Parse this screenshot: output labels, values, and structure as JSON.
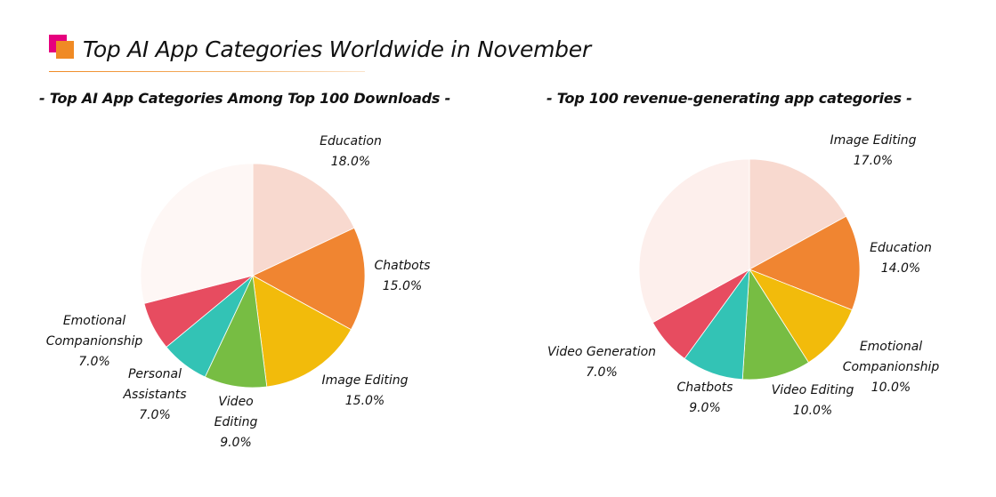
{
  "header": {
    "title": "Top AI App Categories Worldwide in November"
  },
  "colors": {
    "brand_pink": "#e6007e",
    "brand_orange": "#f08a24"
  },
  "chart_data": [
    {
      "type": "pie",
      "title": "- Top AI App Categories Among Top 100 Downloads -",
      "slices": [
        {
          "label": [
            "Education"
          ],
          "value": 18.0,
          "value_label": "18.0%",
          "color": "#f8d9cf"
        },
        {
          "label": [
            "Chatbots"
          ],
          "value": 15.0,
          "value_label": "15.0%",
          "color": "#f08531"
        },
        {
          "label": [
            "Image Editing"
          ],
          "value": 15.0,
          "value_label": "15.0%",
          "color": "#f2bb0b"
        },
        {
          "label": [
            "Video",
            "Editing"
          ],
          "value": 9.0,
          "value_label": "9.0%",
          "color": "#77bd43"
        },
        {
          "label": [
            "Personal",
            "Assistants"
          ],
          "value": 7.0,
          "value_label": "7.0%",
          "color": "#33c3b5"
        },
        {
          "label": [
            "Emotional",
            "Companionship"
          ],
          "value": 7.0,
          "value_label": "7.0%",
          "color": "#e74c60"
        },
        {
          "label": [],
          "value": 29.0,
          "value_label": "",
          "color": "#fef7f5"
        }
      ]
    },
    {
      "type": "pie",
      "title": "-  Top 100 revenue-generating app categories -",
      "slices": [
        {
          "label": [
            "Image Editing"
          ],
          "value": 17.0,
          "value_label": "17.0%",
          "color": "#f8d9cf"
        },
        {
          "label": [
            "Education"
          ],
          "value": 14.0,
          "value_label": "14.0%",
          "color": "#f08531"
        },
        {
          "label": [
            "Emotional",
            "Companionship"
          ],
          "value": 10.0,
          "value_label": "10.0%",
          "color": "#f2bb0b"
        },
        {
          "label": [
            "Video Editing"
          ],
          "value": 10.0,
          "value_label": "10.0%",
          "color": "#77bd43"
        },
        {
          "label": [
            "Chatbots"
          ],
          "value": 9.0,
          "value_label": "9.0%",
          "color": "#33c3b5"
        },
        {
          "label": [
            "Video Generation"
          ],
          "value": 7.0,
          "value_label": "7.0%",
          "color": "#e74c60"
        },
        {
          "label": [],
          "value": 33.0,
          "value_label": "",
          "color": "#fdefec"
        }
      ]
    }
  ]
}
